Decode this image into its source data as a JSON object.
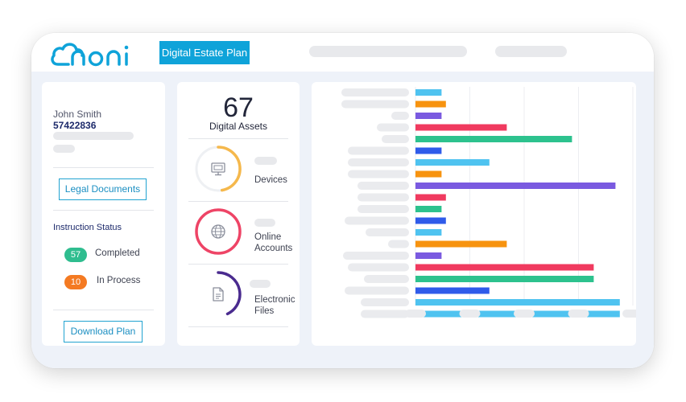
{
  "header": {
    "logo_text": "noni",
    "plan_button_label": "Digital Estate Plan"
  },
  "user": {
    "name": "John Smith",
    "id": "57422836"
  },
  "buttons": {
    "legal_documents": "Legal Documents",
    "download_plan": "Download Plan"
  },
  "instruction_status": {
    "title": "Instruction Status",
    "completed": {
      "count": "57",
      "label": "Completed"
    },
    "in_process": {
      "count": "10",
      "label": "In Process"
    }
  },
  "assets": {
    "total": "67",
    "label": "Digital Assets",
    "categories": [
      {
        "label": "Devices",
        "ring_color": "#f5b84c",
        "icon": "monitor-icon"
      },
      {
        "label": "Online Accounts",
        "ring_color": "#ee4466",
        "icon": "globe-icon"
      },
      {
        "label": "Electronic Files",
        "ring_color": "#4a2b8f",
        "icon": "document-icon"
      }
    ]
  },
  "colors": {
    "brand_blue": "#0fa3d9",
    "completed_green": "#2fbd8f",
    "in_process_orange": "#f47a22"
  },
  "chart_data": {
    "type": "bar",
    "orientation": "horizontal",
    "grid": true,
    "categories": [
      "",
      "",
      "",
      "",
      "",
      "",
      "",
      "",
      "",
      "",
      "",
      "",
      "",
      "",
      "",
      "",
      "",
      "",
      "",
      ""
    ],
    "values": [
      12,
      14,
      12,
      42,
      72,
      12,
      34,
      12,
      92,
      14,
      12,
      14,
      12,
      42,
      12,
      82,
      82,
      34,
      94,
      94
    ],
    "bar_colors": [
      "#4fc3f0",
      "#f7930f",
      "#7a5ae0",
      "#f03a5f",
      "#2dc28e",
      "#2f5bea",
      "#4fc3f0",
      "#f7930f",
      "#7a5ae0",
      "#f03a5f",
      "#2dc28e",
      "#2f5bea",
      "#4fc3f0",
      "#f7930f",
      "#7a5ae0",
      "#f03a5f",
      "#2dc28e",
      "#2f5bea",
      "#4fc3f0",
      "#4fc3f0"
    ],
    "xlim": [
      0,
      100
    ]
  }
}
